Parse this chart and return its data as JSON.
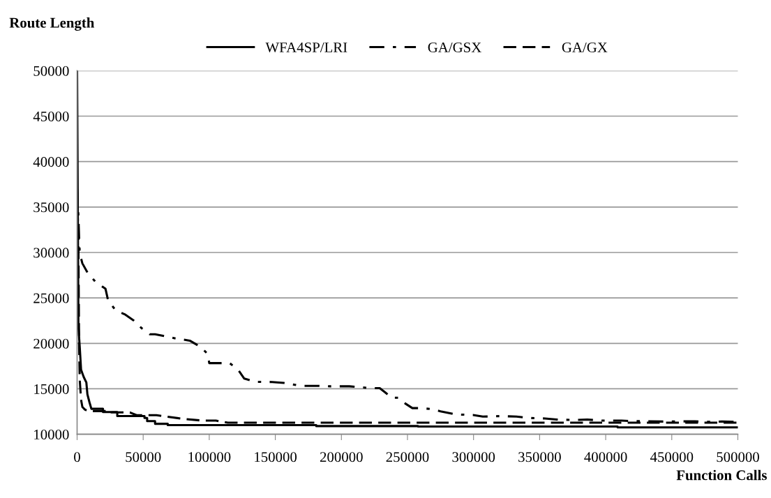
{
  "chart_data": {
    "type": "line",
    "xlabel": "Function Calls",
    "ylabel": "Route Length",
    "xlim": [
      0,
      500000
    ],
    "ylim": [
      10000,
      50000
    ],
    "xticks": [
      0,
      50000,
      100000,
      150000,
      200000,
      250000,
      300000,
      350000,
      400000,
      450000,
      500000
    ],
    "yticks": [
      10000,
      15000,
      20000,
      25000,
      30000,
      35000,
      40000,
      45000,
      50000
    ],
    "grid": "y",
    "legend": "top",
    "marker": "none",
    "series": [
      {
        "name": "WFA4SP/LRI",
        "color": "#000000",
        "line_style": "solid",
        "x": [
          0,
          1000,
          2000,
          3000,
          5000,
          7000,
          7800,
          9400,
          10800,
          19600,
          19600,
          30400,
          30400,
          51000,
          51000,
          53000,
          53000,
          59000,
          59000,
          68600,
          68600,
          181000,
          181000,
          258000,
          258000,
          409000,
          409000,
          500000
        ],
        "values": [
          50000,
          21800,
          19600,
          17100,
          16300,
          15700,
          14400,
          13500,
          12800,
          12800,
          12450,
          12450,
          12000,
          12000,
          11800,
          11800,
          11450,
          11450,
          11150,
          11150,
          11000,
          11000,
          10900,
          10900,
          10850,
          10850,
          10750,
          10750
        ]
      },
      {
        "name": "GA/GSX",
        "color": "#000000",
        "line_style": "dashdot",
        "x": [
          0,
          1000,
          1500,
          2000,
          4000,
          7800,
          13700,
          21500,
          23500,
          29400,
          36000,
          43000,
          49000,
          55000,
          59000,
          74500,
          85300,
          93800,
          99000,
          100000,
          115500,
          122000,
          126500,
          135000,
          147700,
          156500,
          169000,
          183000,
          192000,
          206000,
          222000,
          229000,
          233400,
          237800,
          243000,
          248400,
          253700,
          260000,
          268000,
          275000,
          287000,
          299600,
          307000,
          321000,
          332500,
          342000,
          354000,
          363000,
          376000,
          386000,
          397000,
          412000,
          421000,
          432000,
          444000,
          456000,
          467600,
          477000,
          488000,
          499500
        ],
        "values": [
          37000,
          34000,
          31700,
          29900,
          28800,
          27800,
          26800,
          26000,
          24700,
          23600,
          23200,
          22500,
          21650,
          21000,
          21000,
          20550,
          20300,
          19575,
          18800,
          17825,
          17825,
          17075,
          16125,
          15775,
          15750,
          15650,
          15325,
          15325,
          15275,
          15275,
          15075,
          15075,
          14575,
          14025,
          14025,
          13375,
          12875,
          12875,
          12775,
          12525,
          12175,
          12125,
          11940,
          12000,
          11940,
          11790,
          11740,
          11620,
          11570,
          11620,
          11500,
          11500,
          11450,
          11420,
          11400,
          11420,
          11420,
          11370,
          11400,
          11370
        ]
      },
      {
        "name": "GA/GX",
        "color": "#000000",
        "line_style": "dashed",
        "x": [
          0,
          1000,
          1500,
          2000,
          3000,
          4000,
          6000,
          9000,
          26000,
          26000,
          40000,
          45000,
          60000,
          80000,
          95000,
          105000,
          114000,
          500000
        ],
        "values": [
          37000,
          31000,
          20000,
          16000,
          13800,
          13000,
          12700,
          12550,
          12550,
          12400,
          12400,
          12100,
          12100,
          11700,
          11500,
          11500,
          11275,
          11275
        ]
      }
    ]
  }
}
